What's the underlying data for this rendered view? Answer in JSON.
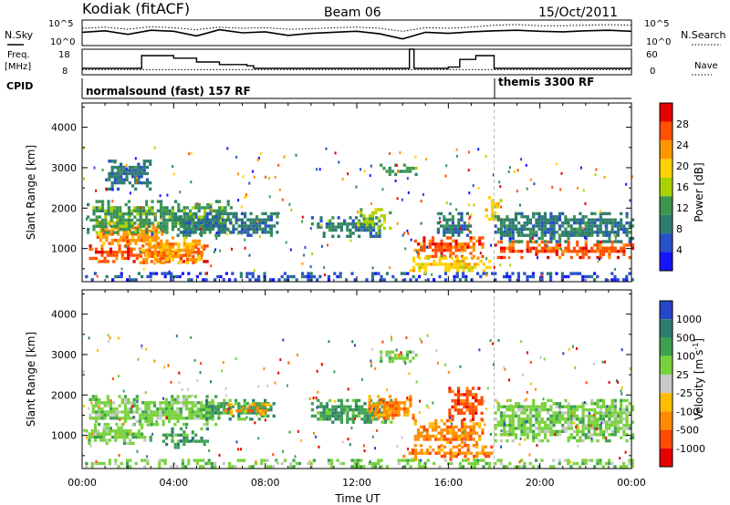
{
  "header": {
    "station": "Kodiak (fitACF)",
    "beam": "Beam 06",
    "date": "15/Oct/2011"
  },
  "top_panels": {
    "nsky_label": "N.Sky",
    "nsky_ticks": [
      "10^5",
      "10^0"
    ],
    "nsearch_label": "N.Search",
    "nsearch_ticks": [
      "10^5",
      "10^0"
    ],
    "freq_label": "Freq.",
    "freq_unit": "[MHz]",
    "freq_ticks": [
      "18",
      "8"
    ],
    "nave_label": "Nave",
    "nave_ticks": [
      "60",
      "0"
    ],
    "cpid_label": "CPID",
    "cpid_segments": [
      {
        "label": "normalsound (fast) 157 RF",
        "start_hour": 0
      },
      {
        "label": "themis 3300 RF",
        "start_hour": 18.0
      }
    ]
  },
  "chart_data": [
    {
      "type": "heatmap",
      "name": "power",
      "ylabel": "Slant Range [km]",
      "xlabel": "Time UT",
      "x_ticks": [
        "00:00",
        "04:00",
        "08:00",
        "12:00",
        "16:00",
        "20:00",
        "00:00"
      ],
      "xlim_hours": [
        0,
        24
      ],
      "y_ticks": [
        1000,
        2000,
        3000,
        4000
      ],
      "ylim": [
        180,
        4600
      ],
      "colorbar_label": "Power [dB]",
      "colorbar_ticks": [
        4,
        8,
        12,
        16,
        20,
        24,
        28
      ],
      "colorbar_range": [
        0,
        32
      ],
      "colors": [
        "#1414ff",
        "#2850c8",
        "#2d7d6e",
        "#3c9650",
        "#aad200",
        "#ffd200",
        "#ff9600",
        "#ff5000",
        "#e60000"
      ],
      "regions": [
        {
          "t0": 0.3,
          "t1": 5.5,
          "r0": 700,
          "r1": 1100,
          "level": 26
        },
        {
          "t0": 0.5,
          "t1": 3.5,
          "r0": 1100,
          "r1": 1700,
          "level": 22
        },
        {
          "t0": 2.5,
          "t1": 5.2,
          "r0": 650,
          "r1": 1300,
          "level": 24
        },
        {
          "t0": 0.2,
          "t1": 6.5,
          "r0": 1400,
          "r1": 2200,
          "level": 12
        },
        {
          "t0": 4.0,
          "t1": 8.5,
          "r0": 1300,
          "r1": 1900,
          "level": 10
        },
        {
          "t0": 10.0,
          "t1": 13.0,
          "r0": 1300,
          "r1": 1800,
          "level": 10
        },
        {
          "t0": 12.0,
          "t1": 13.5,
          "r0": 1500,
          "r1": 2000,
          "level": 16
        },
        {
          "t0": 14.5,
          "t1": 17.5,
          "r0": 800,
          "r1": 1300,
          "level": 28
        },
        {
          "t0": 14.3,
          "t1": 17.8,
          "r0": 450,
          "r1": 800,
          "level": 20
        },
        {
          "t0": 15.5,
          "t1": 17.0,
          "r0": 1300,
          "r1": 1900,
          "level": 10
        },
        {
          "t0": 17.6,
          "t1": 18.3,
          "r0": 1700,
          "r1": 2300,
          "level": 20
        },
        {
          "t0": 18.0,
          "t1": 24.0,
          "r0": 800,
          "r1": 1200,
          "level": 26
        },
        {
          "t0": 18.0,
          "t1": 24.0,
          "r0": 1200,
          "r1": 1900,
          "level": 8
        },
        {
          "t0": 13.0,
          "t1": 14.6,
          "r0": 2800,
          "r1": 3100,
          "level": 12
        },
        {
          "t0": 1.0,
          "t1": 3.0,
          "r0": 2500,
          "r1": 3200,
          "level": 8
        },
        {
          "t0": 0.0,
          "t1": 24.0,
          "r0": 220,
          "r1": 420,
          "level": 6
        }
      ]
    },
    {
      "type": "heatmap",
      "name": "velocity",
      "ylabel": "Slant Range [km]",
      "xlabel": "Time UT",
      "x_ticks": [
        "00:00",
        "04:00",
        "08:00",
        "12:00",
        "16:00",
        "20:00",
        "00:00"
      ],
      "xlim_hours": [
        0,
        24
      ],
      "y_ticks": [
        1000,
        2000,
        3000,
        4000
      ],
      "ylim": [
        180,
        4600
      ],
      "colorbar_label": "Velocity [m s",
      "colorbar_label_sup": "-1",
      "colorbar_ticks": [
        "1000",
        "500",
        "100",
        "25",
        "-25",
        "-100",
        "-500",
        "-1000"
      ],
      "colors": [
        "#2846c8",
        "#2d7d6e",
        "#3ca050",
        "#78d23c",
        "#c8c8c8",
        "#ffbe00",
        "#ff8c00",
        "#ff4b00",
        "#e60000"
      ],
      "regions": [
        {
          "t0": 0.0,
          "t1": 3.0,
          "r0": 800,
          "r1": 1300,
          "level": "25"
        },
        {
          "t0": 0.3,
          "t1": 6.0,
          "r0": 1300,
          "r1": 2000,
          "level": "25"
        },
        {
          "t0": 3.5,
          "t1": 5.5,
          "r0": 700,
          "r1": 1200,
          "level": "100"
        },
        {
          "t0": 5.0,
          "t1": 8.5,
          "r0": 1400,
          "r1": 1900,
          "level": "100"
        },
        {
          "t0": 6.2,
          "t1": 8.2,
          "r0": 1500,
          "r1": 1800,
          "level": "-100"
        },
        {
          "t0": 10.0,
          "t1": 13.5,
          "r0": 1300,
          "r1": 1900,
          "level": "100"
        },
        {
          "t0": 12.5,
          "t1": 14.5,
          "r0": 1400,
          "r1": 2000,
          "level": "-100"
        },
        {
          "t0": 14.5,
          "t1": 17.5,
          "r0": 750,
          "r1": 1400,
          "level": "-100"
        },
        {
          "t0": 14.0,
          "t1": 18.0,
          "r0": 400,
          "r1": 750,
          "level": "-100"
        },
        {
          "t0": 16.0,
          "t1": 17.5,
          "r0": 1400,
          "r1": 2200,
          "level": "-500"
        },
        {
          "t0": 18.0,
          "t1": 24.0,
          "r0": 850,
          "r1": 1900,
          "level": "25"
        },
        {
          "t0": 13.0,
          "t1": 14.6,
          "r0": 2800,
          "r1": 3100,
          "level": "25"
        },
        {
          "t0": 0.0,
          "t1": 24.0,
          "r0": 220,
          "r1": 420,
          "level": "25"
        }
      ]
    }
  ],
  "line_series": {
    "nsky": [
      2.6,
      2.9,
      2.2,
      3.0,
      2.8,
      1.9,
      3.1,
      2.5,
      2.7,
      2.0,
      2.4,
      2.6,
      2.8,
      2.3,
      1.3,
      2.6,
      2.4,
      2.7,
      2.9,
      3.0,
      2.8,
      2.7,
      2.9,
      3.0,
      2.8
    ],
    "nsearch": [
      3.4,
      3.6,
      3.2,
      3.7,
      3.5,
      3.1,
      3.6,
      3.4,
      3.5,
      3.2,
      3.3,
      3.5,
      3.6,
      3.4,
      2.8,
      3.5,
      3.4,
      3.6,
      4.0,
      4.1,
      3.9,
      3.9,
      4.0,
      4.1,
      4.0
    ],
    "freq_steps": [
      [
        0,
        10.5
      ],
      [
        2.6,
        15.5
      ],
      [
        4.0,
        14.5
      ],
      [
        5.0,
        13.0
      ],
      [
        6.0,
        12.0
      ],
      [
        7.2,
        11.5
      ],
      [
        7.5,
        10.5
      ],
      [
        14.0,
        10.5
      ],
      [
        14.3,
        18.0
      ],
      [
        14.5,
        10.5
      ],
      [
        16.0,
        11.0
      ],
      [
        16.5,
        14.0
      ],
      [
        17.2,
        15.5
      ],
      [
        18.0,
        10.5
      ],
      [
        24,
        10.5
      ]
    ],
    "nave": 12
  }
}
